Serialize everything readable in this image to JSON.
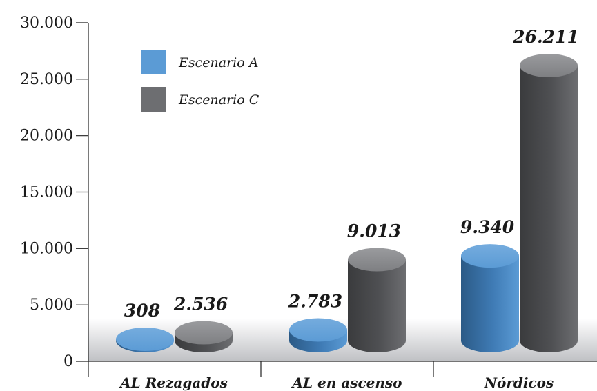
{
  "chart_data": {
    "type": "bar",
    "categories": [
      "AL Rezagados",
      "AL en ascenso",
      "Nórdicos"
    ],
    "series": [
      {
        "name": "Escenario A",
        "values": [
          308,
          2783,
          9340
        ],
        "labels": [
          "308",
          "2.783",
          "9.340"
        ],
        "color": "#5b9bd5"
      },
      {
        "name": "Escenario C",
        "values": [
          2536,
          9013,
          26211
        ],
        "labels": [
          "2.536",
          "9.013",
          "26.211"
        ],
        "color": "#6d6e71"
      }
    ],
    "yticks": [
      0,
      5000,
      10000,
      15000,
      20000,
      25000,
      30000
    ],
    "ytick_labels": [
      "0",
      "5.000",
      "10.000",
      "15.000",
      "20.000",
      "25.000",
      "30.000"
    ],
    "ylim": [
      0,
      30000
    ],
    "legend_position": "top-left",
    "style": "3d-cylinder"
  }
}
